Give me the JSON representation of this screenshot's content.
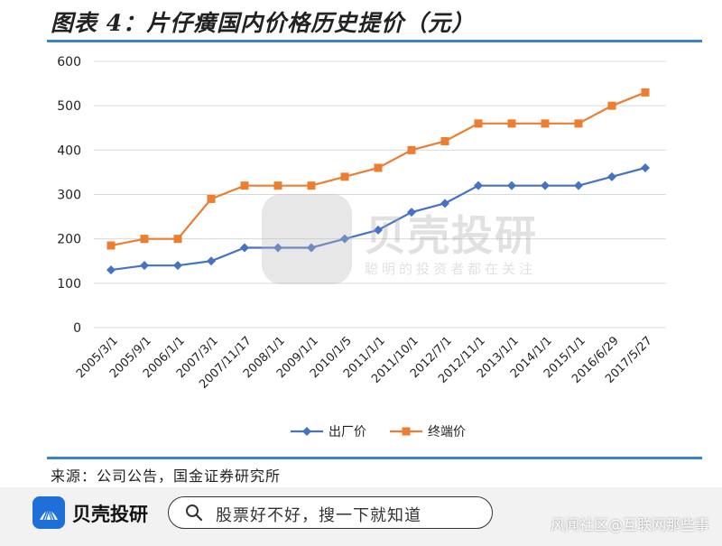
{
  "header": {
    "title": "图表 4：片仔癀国内价格历史提价（元）"
  },
  "source": "来源：公司公告，国金证券研究所",
  "watermark": {
    "title": "贝壳投研",
    "subtitle": "聪明的投资者都在关注"
  },
  "bottom_bar": {
    "logo_text": "贝壳投研",
    "search_placeholder": "股票好不好，搜一下就知道",
    "credit": "风闻社区@互联网那些事"
  },
  "colors": {
    "factory": "#4472c4",
    "terminal": "#ed7d31",
    "rule": "#3a84c8",
    "grid": "#d9d9d9"
  },
  "chart_data": {
    "type": "line",
    "title": "片仔癀国内价格历史提价（元）",
    "xlabel": "",
    "ylabel": "",
    "ylim": [
      0,
      600
    ],
    "yticks": [
      0,
      100,
      200,
      300,
      400,
      500,
      600
    ],
    "grid": true,
    "legend_position": "bottom",
    "categories": [
      "2005/3/1",
      "2005/9/1",
      "2006/1/1",
      "2007/3/1",
      "2007/11/17",
      "2008/1/1",
      "2009/1/1",
      "2010/1/5",
      "2011/1/1",
      "2011/10/1",
      "2012/7/1",
      "2012/11/1",
      "2013/1/1",
      "2014/1/1",
      "2015/1/1",
      "2016/6/29",
      "2017/5/27"
    ],
    "series": [
      {
        "name": "出厂价",
        "marker": "diamond",
        "values": [
          130,
          140,
          140,
          150,
          180,
          180,
          180,
          200,
          220,
          260,
          280,
          320,
          320,
          320,
          320,
          340,
          360
        ]
      },
      {
        "name": "终端价",
        "marker": "square",
        "values": [
          185,
          200,
          200,
          290,
          320,
          320,
          320,
          340,
          360,
          400,
          420,
          460,
          460,
          460,
          460,
          500,
          530
        ]
      }
    ]
  }
}
